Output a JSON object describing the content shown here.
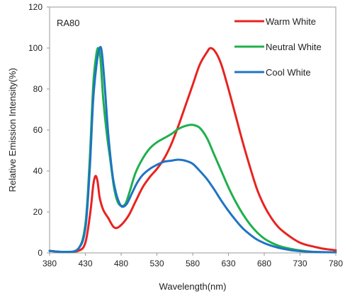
{
  "chart_data": {
    "type": "line",
    "title": "",
    "annotation": "RA80",
    "xlabel": "Wavelength(nm)",
    "ylabel": "Relative Emission Intensity(%)",
    "xlim": [
      380,
      780
    ],
    "ylim": [
      0,
      120
    ],
    "xticks": [
      380,
      430,
      480,
      530,
      580,
      630,
      680,
      730,
      780
    ],
    "yticks": [
      0,
      20,
      40,
      60,
      80,
      100,
      120
    ],
    "grid": "none",
    "legend_position": "top-right",
    "series": [
      {
        "name": "Warm White",
        "color": "#e8231f",
        "points": [
          [
            380,
            1
          ],
          [
            400,
            0.5
          ],
          [
            420,
            1
          ],
          [
            430,
            5
          ],
          [
            437,
            20
          ],
          [
            441,
            33
          ],
          [
            444,
            37.5
          ],
          [
            447,
            35
          ],
          [
            450,
            27
          ],
          [
            455,
            21
          ],
          [
            462,
            17
          ],
          [
            470,
            12.5
          ],
          [
            478,
            13
          ],
          [
            490,
            18
          ],
          [
            500,
            25
          ],
          [
            510,
            32
          ],
          [
            520,
            37
          ],
          [
            530,
            41
          ],
          [
            540,
            46
          ],
          [
            550,
            53
          ],
          [
            560,
            62
          ],
          [
            570,
            72
          ],
          [
            580,
            82
          ],
          [
            590,
            92
          ],
          [
            600,
            98
          ],
          [
            605,
            100
          ],
          [
            612,
            98
          ],
          [
            620,
            92
          ],
          [
            630,
            80
          ],
          [
            640,
            67
          ],
          [
            650,
            54
          ],
          [
            660,
            42
          ],
          [
            670,
            31
          ],
          [
            680,
            23
          ],
          [
            690,
            17
          ],
          [
            700,
            12.5
          ],
          [
            710,
            9.5
          ],
          [
            720,
            7
          ],
          [
            730,
            5
          ],
          [
            740,
            3.8
          ],
          [
            750,
            3
          ],
          [
            760,
            2.2
          ],
          [
            770,
            1.7
          ],
          [
            780,
            1.3
          ]
        ]
      },
      {
        "name": "Neutral White",
        "color": "#1fb04c",
        "points": [
          [
            380,
            1
          ],
          [
            400,
            0.5
          ],
          [
            420,
            2
          ],
          [
            430,
            14
          ],
          [
            436,
            45
          ],
          [
            441,
            82
          ],
          [
            445,
            96
          ],
          [
            448,
            100
          ],
          [
            451,
            95
          ],
          [
            455,
            75
          ],
          [
            460,
            58
          ],
          [
            465,
            45
          ],
          [
            470,
            32
          ],
          [
            475,
            25
          ],
          [
            480,
            23
          ],
          [
            486,
            24
          ],
          [
            492,
            30
          ],
          [
            500,
            39
          ],
          [
            510,
            46
          ],
          [
            520,
            51
          ],
          [
            530,
            54
          ],
          [
            540,
            56
          ],
          [
            550,
            58
          ],
          [
            560,
            60.5
          ],
          [
            570,
            62
          ],
          [
            580,
            62.5
          ],
          [
            590,
            61
          ],
          [
            600,
            56
          ],
          [
            610,
            48
          ],
          [
            620,
            40
          ],
          [
            630,
            32
          ],
          [
            640,
            25
          ],
          [
            650,
            19
          ],
          [
            660,
            14
          ],
          [
            670,
            10
          ],
          [
            680,
            7
          ],
          [
            690,
            5
          ],
          [
            700,
            3.5
          ],
          [
            710,
            2.5
          ],
          [
            720,
            1.8
          ],
          [
            730,
            1.2
          ],
          [
            740,
            0.8
          ],
          [
            750,
            0.5
          ],
          [
            760,
            0.4
          ],
          [
            780,
            0.3
          ]
        ]
      },
      {
        "name": "Cool White",
        "color": "#1f74c4",
        "points": [
          [
            380,
            1
          ],
          [
            400,
            0.5
          ],
          [
            420,
            2
          ],
          [
            430,
            12
          ],
          [
            436,
            40
          ],
          [
            441,
            75
          ],
          [
            446,
            93
          ],
          [
            450,
            100
          ],
          [
            453,
            98
          ],
          [
            457,
            82
          ],
          [
            462,
            58
          ],
          [
            468,
            38
          ],
          [
            473,
            29
          ],
          [
            478,
            24
          ],
          [
            482,
            22.5
          ],
          [
            488,
            24
          ],
          [
            495,
            29
          ],
          [
            502,
            34
          ],
          [
            510,
            38
          ],
          [
            520,
            41
          ],
          [
            530,
            43
          ],
          [
            540,
            44.5
          ],
          [
            550,
            45
          ],
          [
            560,
            45.5
          ],
          [
            570,
            45
          ],
          [
            580,
            43.5
          ],
          [
            590,
            40
          ],
          [
            600,
            36
          ],
          [
            610,
            31
          ],
          [
            620,
            25.5
          ],
          [
            630,
            20.5
          ],
          [
            640,
            16
          ],
          [
            650,
            12
          ],
          [
            660,
            9
          ],
          [
            670,
            6.5
          ],
          [
            680,
            4.8
          ],
          [
            690,
            3.5
          ],
          [
            700,
            2.5
          ],
          [
            710,
            1.8
          ],
          [
            720,
            1.2
          ],
          [
            740,
            0.6
          ],
          [
            760,
            0.4
          ],
          [
            780,
            0.3
          ]
        ]
      }
    ]
  }
}
